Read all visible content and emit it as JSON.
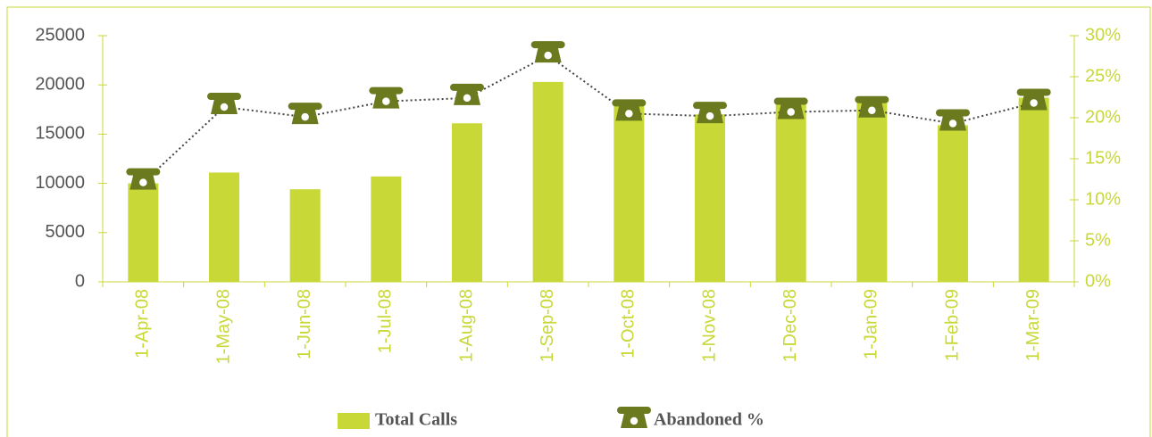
{
  "chart_data": {
    "type": "combo",
    "categories": [
      "1-Apr-08",
      "1-May-08",
      "1-Jun-08",
      "1-Jul-08",
      "1-Aug-08",
      "1-Sep-08",
      "1-Oct-08",
      "1-Nov-08",
      "1-Dec-08",
      "1-Jan-09",
      "1-Feb-09",
      "1-Mar-09"
    ],
    "series": [
      {
        "name": "Total Calls",
        "type": "bar",
        "color": "#c8d837",
        "values": [
          10000,
          11100,
          9400,
          10700,
          16100,
          20300,
          18200,
          17000,
          18400,
          18200,
          15900,
          18700
        ]
      },
      {
        "name": "Abandoned %",
        "type": "line",
        "axis": "y2",
        "color": "#6b7a1e",
        "values": [
          12.1,
          21.3,
          20.1,
          22.0,
          22.4,
          27.6,
          20.5,
          20.2,
          20.7,
          20.9,
          19.3,
          21.8
        ]
      }
    ],
    "ylim": [
      0,
      25000
    ],
    "yticks": [
      0,
      5000,
      10000,
      15000,
      20000,
      25000
    ],
    "y2lim": [
      0,
      30
    ],
    "y2ticks": [
      {
        "value": 0,
        "label": "0%"
      },
      {
        "value": 5,
        "label": "5%"
      },
      {
        "value": 10,
        "label": "10%"
      },
      {
        "value": 15,
        "label": "15%"
      },
      {
        "value": 20,
        "label": "20%"
      },
      {
        "value": 25,
        "label": "25%"
      },
      {
        "value": 30,
        "label": "30%"
      }
    ],
    "legend": "bottom"
  }
}
